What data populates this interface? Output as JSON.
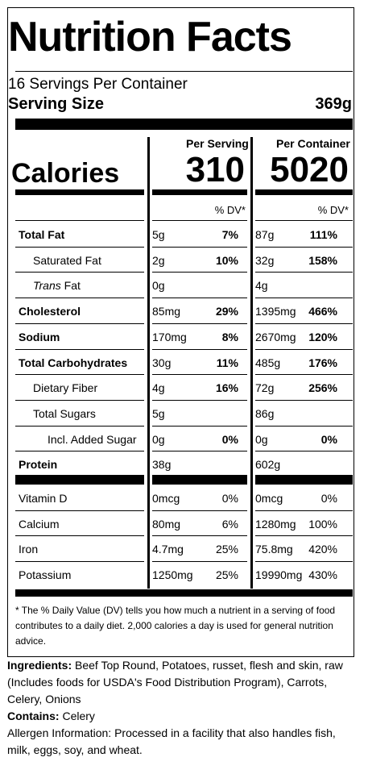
{
  "label": {
    "title": "Nutrition Facts",
    "servings": "16 Servings Per Container",
    "serving_size_label": "Serving Size",
    "serving_size_value": "369g",
    "per_serving": "Per Serving",
    "per_container": "Per Container",
    "calories_label": "Calories",
    "calories_serving": "310",
    "calories_container": "5020",
    "dv_header": "% DV*",
    "nutrients": [
      {
        "name": "Total Fat",
        "bold": true,
        "indent": 0,
        "s_amt": "5g",
        "s_dv": "7%",
        "c_amt": "87g",
        "c_dv": "111%"
      },
      {
        "name": "Saturated Fat",
        "bold": false,
        "indent": 1,
        "s_amt": "2g",
        "s_dv": "10%",
        "c_amt": "32g",
        "c_dv": "158%"
      },
      {
        "name_italic": "Trans",
        "name": " Fat",
        "bold": false,
        "indent": 1,
        "s_amt": "0g",
        "s_dv": "",
        "c_amt": "4g",
        "c_dv": ""
      },
      {
        "name": "Cholesterol",
        "bold": true,
        "indent": 0,
        "s_amt": "85mg",
        "s_dv": "29%",
        "c_amt": "1395mg",
        "c_dv": "466%"
      },
      {
        "name": "Sodium",
        "bold": true,
        "indent": 0,
        "s_amt": "170mg",
        "s_dv": "8%",
        "c_amt": "2670mg",
        "c_dv": "120%"
      },
      {
        "name": "Total Carbohydrates",
        "bold": true,
        "indent": 0,
        "s_amt": "30g",
        "s_dv": "11%",
        "c_amt": "485g",
        "c_dv": "176%"
      },
      {
        "name": "Dietary Fiber",
        "bold": false,
        "indent": 1,
        "s_amt": "4g",
        "s_dv": "16%",
        "c_amt": "72g",
        "c_dv": "256%"
      },
      {
        "name": "Total Sugars",
        "bold": false,
        "indent": 1,
        "s_amt": "5g",
        "s_dv": "",
        "c_amt": "86g",
        "c_dv": ""
      },
      {
        "name": "Incl. Added Sugar",
        "bold": false,
        "indent": 2,
        "s_amt": "0g",
        "s_dv": "0%",
        "c_amt": "0g",
        "c_dv": "0%"
      },
      {
        "name": "Protein",
        "bold": true,
        "indent": 0,
        "s_amt": "38g",
        "s_dv": "",
        "c_amt": "602g",
        "c_dv": ""
      }
    ],
    "vitamins": [
      {
        "name": "Vitamin D",
        "s_amt": "0mcg",
        "s_dv": "0%",
        "c_amt": "0mcg",
        "c_dv": "0%"
      },
      {
        "name": "Calcium",
        "s_amt": "80mg",
        "s_dv": "6%",
        "c_amt": "1280mg",
        "c_dv": "100%"
      },
      {
        "name": "Iron",
        "s_amt": "4.7mg",
        "s_dv": "25%",
        "c_amt": "75.8mg",
        "c_dv": "420%"
      },
      {
        "name": "Potassium",
        "s_amt": "1250mg",
        "s_dv": "25%",
        "c_amt": "19990mg",
        "c_dv": "430%"
      }
    ],
    "footnote": "* The % Daily Value (DV) tells you how much a nutrient in a serving of food contributes to a daily diet. 2,000 calories a day is used for general nutrition advice."
  },
  "ingredients": {
    "label": "Ingredients:",
    "text": " Beef Top Round, Potatoes, russet, flesh and skin, raw (Includes foods for USDA's Food Distribution Program), Carrots, Celery, Onions"
  },
  "contains": {
    "label": "Contains:",
    "text": " Celery"
  },
  "allergen": "Allergen Information: Processed in a facility that also handles fish, milk, eggs, soy, and wheat."
}
